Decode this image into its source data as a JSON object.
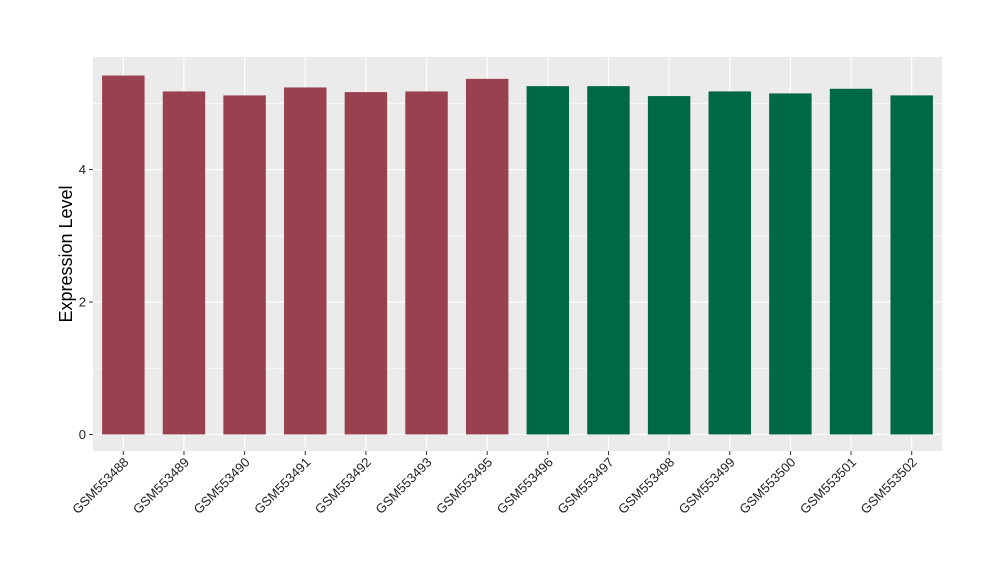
{
  "chart_data": {
    "type": "bar",
    "title": "",
    "xlabel": "",
    "ylabel": "Expression Level",
    "categories": [
      "GSM553488",
      "GSM553489",
      "GSM553490",
      "GSM553491",
      "GSM553492",
      "GSM553493",
      "GSM553495",
      "GSM553496",
      "GSM553497",
      "GSM553498",
      "GSM553499",
      "GSM553500",
      "GSM553501",
      "GSM553502"
    ],
    "values": [
      5.42,
      5.18,
      5.12,
      5.24,
      5.17,
      5.18,
      5.37,
      5.26,
      5.26,
      5.11,
      5.18,
      5.15,
      5.22,
      5.12
    ],
    "groups": [
      0,
      0,
      0,
      0,
      0,
      0,
      0,
      1,
      1,
      1,
      1,
      1,
      1,
      1
    ],
    "group_colors": [
      "#9a4150",
      "#006845"
    ],
    "ylim": [
      -0.25,
      5.7
    ],
    "yticks": [
      0,
      2,
      4
    ],
    "grid": true,
    "panel_background": "#ebebeb",
    "legend": "none"
  }
}
